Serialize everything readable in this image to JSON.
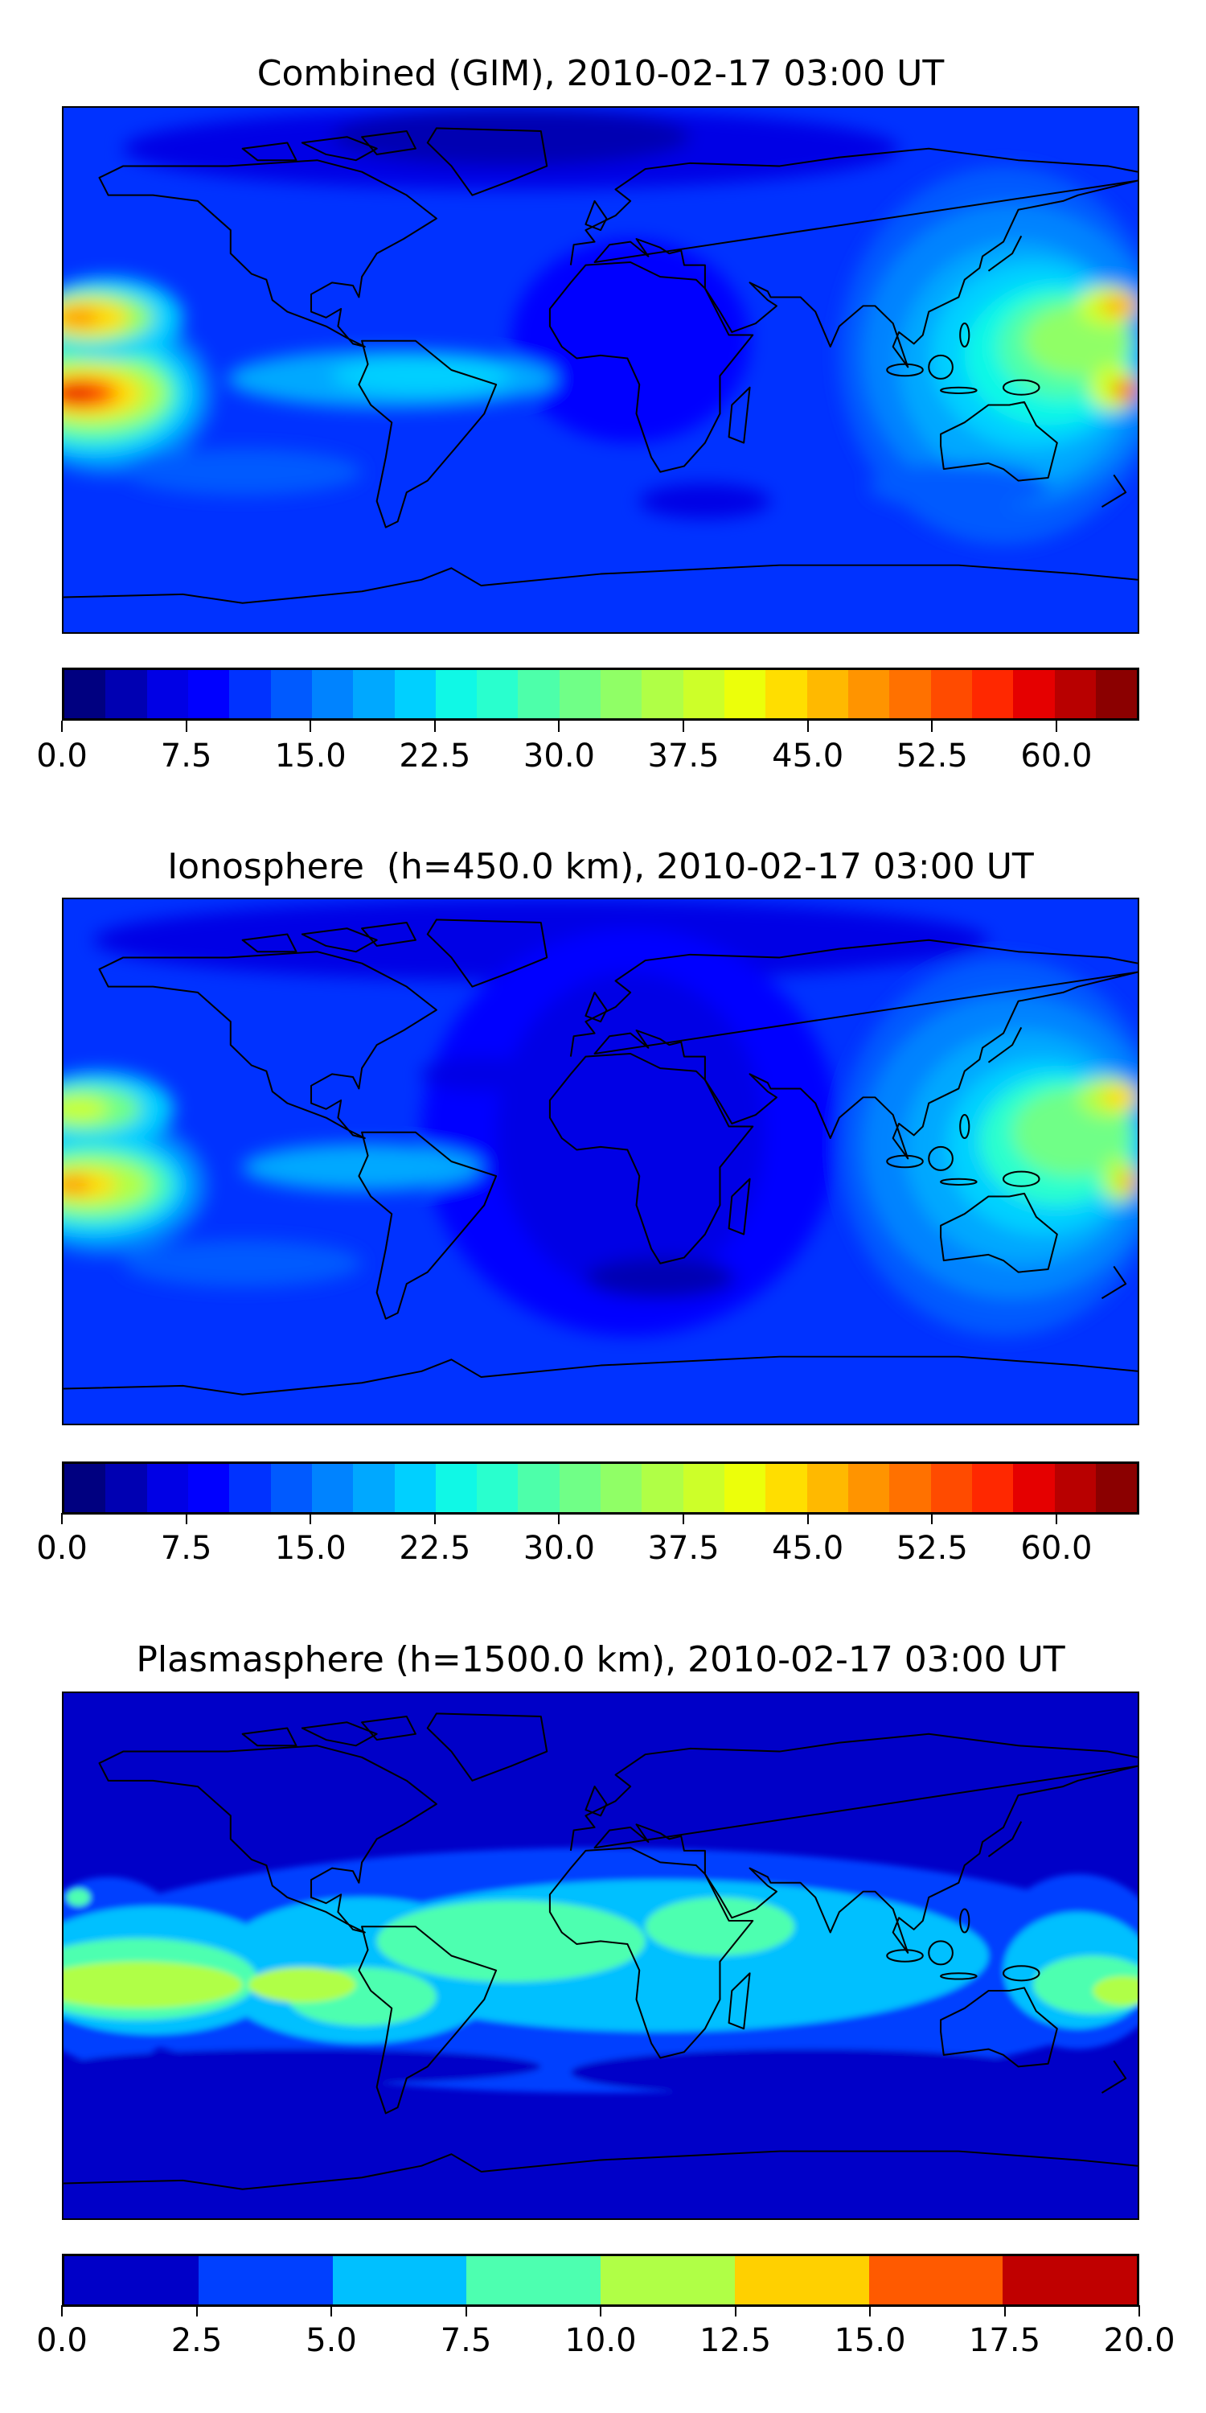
{
  "chart_data": [
    {
      "type": "heatmap",
      "title": "Combined (GIM), 2010-02-17 03:00 UT",
      "xlim": [
        -180,
        180
      ],
      "ylim": [
        -90,
        90
      ],
      "colorbar": {
        "range": [
          0,
          65
        ],
        "step": 2.5,
        "ticks": [
          "0.0",
          "7.5",
          "15.0",
          "22.5",
          "30.0",
          "37.5",
          "45.0",
          "52.5",
          "60.0"
        ],
        "colors": [
          "#000080",
          "#0000b2",
          "#0000e5",
          "#0000ff",
          "#0032ff",
          "#005aff",
          "#0083ff",
          "#00a8ff",
          "#00d0ff",
          "#10f8e6",
          "#29ffce",
          "#4dffaa",
          "#70ff87",
          "#90ff66",
          "#b0ff46",
          "#cdff29",
          "#ecff0a",
          "#ffde00",
          "#ffb900",
          "#ff9400",
          "#ff7100",
          "#ff4b00",
          "#ff2800",
          "#e50000",
          "#b80000",
          "#8b0000"
        ]
      }
    },
    {
      "type": "heatmap",
      "title": "Ionosphere  (h=450.0 km), 2010-02-17 03:00 UT",
      "xlim": [
        -180,
        180
      ],
      "ylim": [
        -90,
        90
      ],
      "colorbar": {
        "range": [
          0,
          65
        ],
        "step": 2.5,
        "ticks": [
          "0.0",
          "7.5",
          "15.0",
          "22.5",
          "30.0",
          "37.5",
          "45.0",
          "52.5",
          "60.0"
        ],
        "colors": [
          "#000080",
          "#0000b2",
          "#0000e5",
          "#0000ff",
          "#0032ff",
          "#005aff",
          "#0083ff",
          "#00a8ff",
          "#00d0ff",
          "#10f8e6",
          "#29ffce",
          "#4dffaa",
          "#70ff87",
          "#90ff66",
          "#b0ff46",
          "#cdff29",
          "#ecff0a",
          "#ffde00",
          "#ffb900",
          "#ff9400",
          "#ff7100",
          "#ff4b00",
          "#ff2800",
          "#e50000",
          "#b80000",
          "#8b0000"
        ]
      }
    },
    {
      "type": "heatmap",
      "title": "Plasmasphere (h=1500.0 km), 2010-02-17 03:00 UT",
      "xlim": [
        -180,
        180
      ],
      "ylim": [
        -90,
        90
      ],
      "colorbar": {
        "range": [
          0,
          20
        ],
        "step": 2.5,
        "ticks": [
          "0.0",
          "2.5",
          "5.0",
          "7.5",
          "10.0",
          "12.5",
          "15.0",
          "17.5",
          "20.0"
        ],
        "colors": [
          "#0000c8",
          "#0040ff",
          "#00c0ff",
          "#4dffb0",
          "#b0ff46",
          "#ffd000",
          "#ff5a00",
          "#c00000"
        ]
      }
    }
  ]
}
